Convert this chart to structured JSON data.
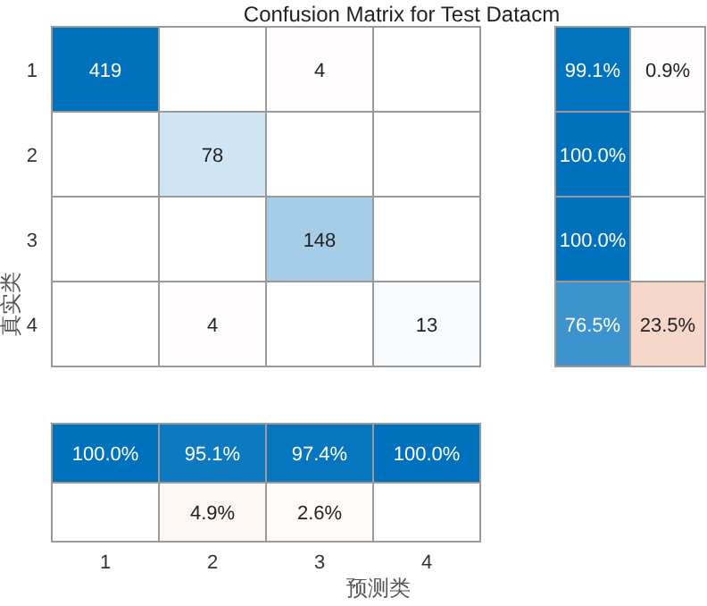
{
  "chart_data": [
    {
      "type": "heatmap",
      "title": "Confusion Matrix for Test Datacm",
      "ylabel": "真实类",
      "categories": [
        null,
        null,
        null,
        null
      ],
      "y_categories": [
        "1",
        "2",
        "3",
        "4"
      ],
      "tick_labels": "y",
      "data_labels": true,
      "cells": [
        [
          419,
          null,
          4,
          null
        ],
        [
          null,
          78,
          null,
          null
        ],
        [
          null,
          null,
          148,
          null
        ],
        [
          null,
          4,
          null,
          13
        ]
      ]
    },
    {
      "type": "heatmap",
      "categories": [
        null,
        null
      ],
      "y_categories": [
        null,
        null,
        null,
        null
      ],
      "tick_labels": false,
      "cells": [
        [
          99.1,
          0.9
        ],
        [
          100.0,
          null
        ],
        [
          100.0,
          null
        ],
        [
          76.5,
          23.5
        ]
      ],
      "cell_labels": [
        [
          "99.1%",
          "0.9%"
        ],
        [
          "100.0%",
          null
        ],
        [
          "100.0%",
          null
        ],
        [
          "76.5%",
          "23.5%"
        ]
      ]
    },
    {
      "type": "heatmap",
      "xlabel": "预测类",
      "categories": [
        "1",
        "2",
        "3",
        "4"
      ],
      "y_categories": [
        null,
        null
      ],
      "tick_labels": "x",
      "cells": [
        [
          100.0,
          95.1,
          97.4,
          100.0
        ],
        [
          null,
          4.9,
          2.6,
          null
        ]
      ],
      "cell_labels": [
        [
          "100.0%",
          "95.1%",
          "97.4%",
          "100.0%"
        ],
        [
          null,
          "4.9%",
          "2.6%",
          null
        ]
      ]
    }
  ]
}
